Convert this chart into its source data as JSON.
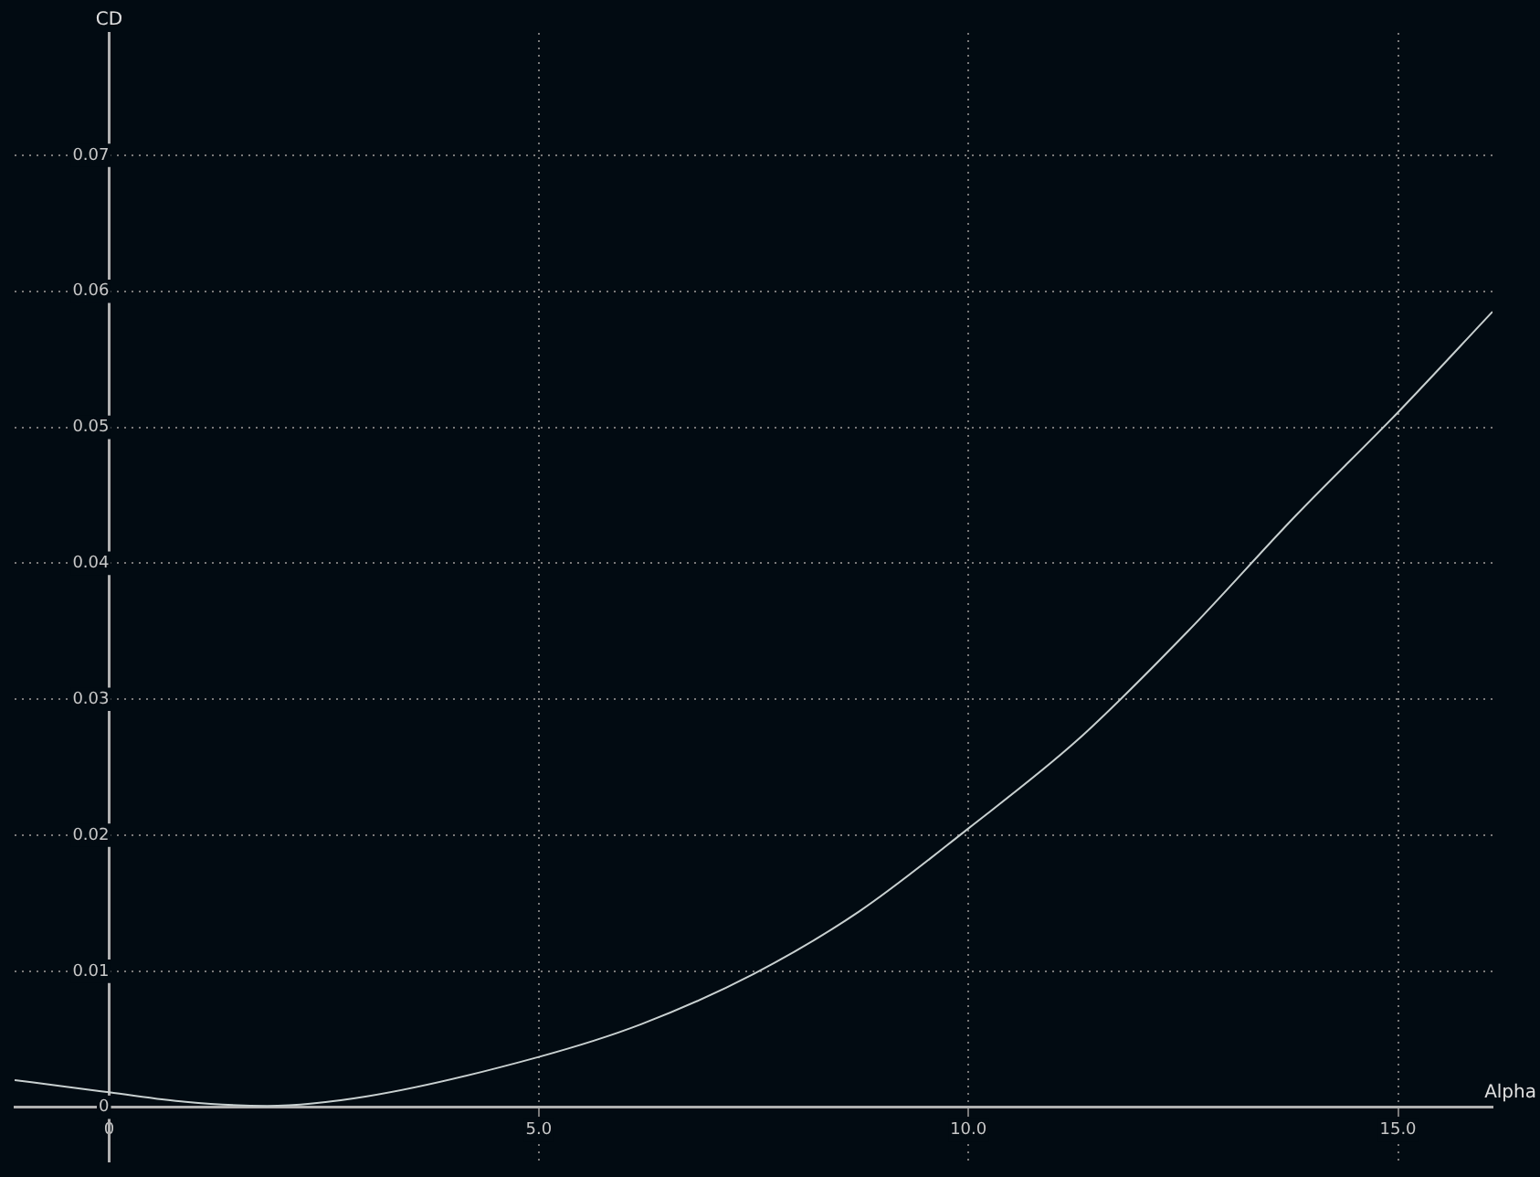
{
  "chart_data": {
    "type": "line",
    "xlabel": "Alpha",
    "ylabel": "CD",
    "x": [
      -1.1,
      -0.5,
      0,
      0.89,
      1.84,
      3.0,
      5.0,
      6.19,
      7.5,
      8.73,
      10.0,
      11.27,
      12.54,
      13.81,
      15.0,
      16.1
    ],
    "series": [
      {
        "color": "#c8d0d0",
        "values": [
          0.002,
          0.0015,
          0.0011,
          0.0004,
          0.0001,
          0.0008,
          0.0037,
          0.0061,
          0.0098,
          0.0144,
          0.0205,
          0.027,
          0.0349,
          0.0435,
          0.0511,
          0.0585
        ]
      }
    ],
    "xlim": [
      -1.1,
      16.1
    ],
    "ylim": [
      -0.004,
      0.079
    ],
    "xticks": [
      0,
      {
        "value": 5,
        "label": "5.0"
      },
      {
        "value": 10,
        "label": "10.0"
      },
      {
        "value": 15,
        "label": "15.0"
      }
    ],
    "yticks": [
      0,
      0.01,
      0.02,
      0.03,
      0.04,
      0.05,
      0.06,
      0.07
    ],
    "grid": true,
    "legend": false,
    "marker": "none",
    "line_style": "solid"
  }
}
